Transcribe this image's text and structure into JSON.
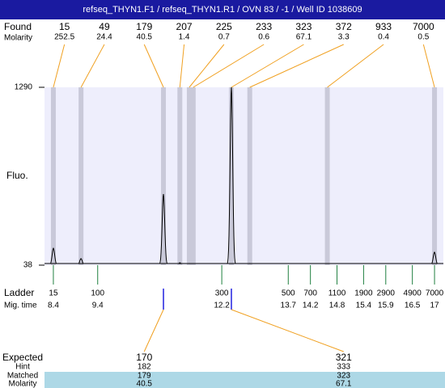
{
  "chart_data": {
    "type": "electropherogram",
    "title": "refseq_THYN1.F1 / refseq_THYN1.R1 / OVN 83 / -1 / Well ID 1038609",
    "found_label": "Found",
    "molarity_label": "Molarity",
    "y_label": "Fluo.",
    "ylim": [
      38,
      1290
    ],
    "yticks": [
      38,
      1290
    ],
    "xlim": [
      8.2,
      17.2
    ],
    "peaks": {
      "sizes": [
        15,
        49,
        179,
        207,
        225,
        233,
        323,
        372,
        933,
        7000
      ],
      "molarity": [
        252.5,
        24.4,
        40.5,
        1.4,
        0.7,
        0.6,
        67.1,
        3.3,
        0.4,
        0.5
      ],
      "heights": [
        157,
        84,
        539,
        55,
        50,
        45,
        1290,
        50,
        44,
        129
      ]
    },
    "ladder": {
      "label": "Ladder",
      "time_label": "Mig. time",
      "sizes": [
        15,
        100,
        300,
        500,
        700,
        1100,
        1900,
        2900,
        4900,
        7000
      ],
      "times": [
        8.4,
        9.4,
        12.2,
        13.7,
        14.2,
        14.8,
        15.4,
        15.9,
        16.5,
        17
      ]
    },
    "expected": {
      "label": "Expected",
      "hint_label": "Hint",
      "matched_label": "Matched",
      "molarity_label": "Molarity",
      "expected": [
        170,
        321
      ],
      "hint": [
        182,
        333
      ],
      "matched": [
        179,
        323
      ],
      "molarity": [
        40.5,
        67.1
      ]
    },
    "colors": {
      "title_bar": "#1a1aa0",
      "plot": "#eeeefc",
      "band": "#c9c9d9",
      "guide": "#f0a020",
      "ladder": "#208040",
      "match": "#2020e0",
      "row": "#add8e6",
      "trace": "#000000"
    }
  }
}
